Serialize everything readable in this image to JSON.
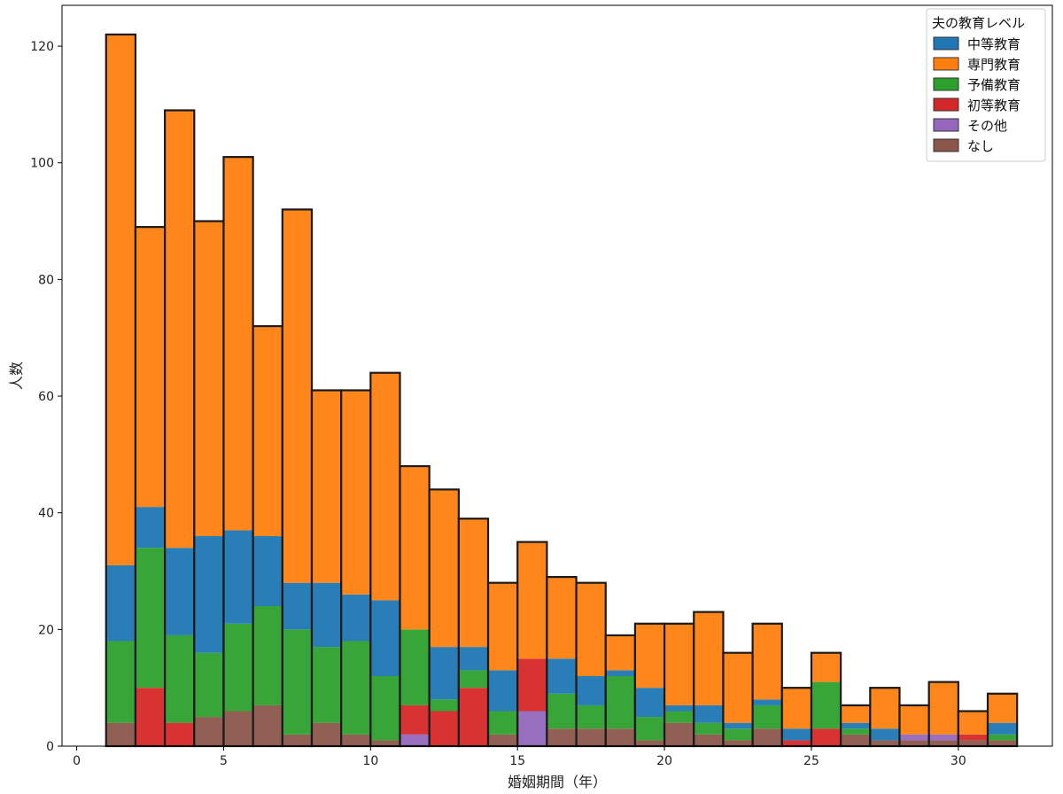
{
  "chart_data": {
    "type": "bar",
    "stacked": true,
    "histogram": true,
    "xlabel": "婚姻期間（年）",
    "ylabel": "人数",
    "xlim": [
      -0.5,
      33.2
    ],
    "ylim": [
      0,
      127
    ],
    "xticks": [
      0,
      5,
      10,
      15,
      20,
      25,
      30
    ],
    "yticks": [
      0,
      20,
      40,
      60,
      80,
      100,
      120
    ],
    "bin_width": 1,
    "bin_starts": [
      1,
      2,
      3,
      4,
      5,
      6,
      7,
      8,
      9,
      10,
      11,
      12,
      13,
      14,
      15,
      16,
      17,
      18,
      19,
      20,
      21,
      22,
      23,
      24,
      25,
      26,
      27,
      28,
      29,
      30,
      31
    ],
    "legend": {
      "title": "夫の教育レベル",
      "position": "top-right"
    },
    "series": [
      {
        "name": "なし",
        "color": "#8c564b",
        "values": [
          4,
          0,
          0,
          5,
          6,
          7,
          2,
          4,
          2,
          1,
          0,
          0,
          0,
          2,
          0,
          3,
          3,
          3,
          1,
          4,
          2,
          1,
          3,
          0,
          0,
          2,
          1,
          1,
          1,
          1,
          1
        ]
      },
      {
        "name": "その他",
        "color": "#9467bd",
        "values": [
          0,
          0,
          0,
          0,
          0,
          0,
          0,
          0,
          0,
          0,
          2,
          0,
          0,
          0,
          6,
          0,
          0,
          0,
          0,
          0,
          0,
          0,
          0,
          0,
          0,
          0,
          0,
          1,
          1,
          0,
          0
        ]
      },
      {
        "name": "初等教育",
        "color": "#d62728",
        "values": [
          0,
          10,
          4,
          0,
          0,
          0,
          0,
          0,
          0,
          0,
          5,
          6,
          10,
          0,
          9,
          0,
          0,
          0,
          0,
          0,
          0,
          0,
          0,
          1,
          3,
          0,
          0,
          0,
          0,
          1,
          0
        ]
      },
      {
        "name": "予備教育",
        "color": "#2ca02c",
        "values": [
          14,
          24,
          15,
          11,
          15,
          17,
          18,
          13,
          16,
          11,
          13,
          2,
          3,
          4,
          0,
          6,
          4,
          9,
          4,
          2,
          2,
          2,
          4,
          0,
          8,
          1,
          0,
          0,
          0,
          0,
          1
        ]
      },
      {
        "name": "中等教育",
        "color": "#1f77b4",
        "values": [
          13,
          7,
          15,
          20,
          16,
          12,
          8,
          11,
          8,
          13,
          0,
          9,
          4,
          7,
          0,
          6,
          5,
          1,
          5,
          1,
          3,
          1,
          1,
          2,
          0,
          1,
          2,
          0,
          0,
          0,
          2
        ]
      },
      {
        "name": "専門教育",
        "color": "#ff7f0e",
        "values": [
          91,
          48,
          75,
          54,
          64,
          36,
          64,
          33,
          35,
          39,
          28,
          27,
          22,
          15,
          20,
          14,
          16,
          6,
          11,
          14,
          16,
          12,
          13,
          7,
          5,
          3,
          7,
          5,
          9,
          4,
          5
        ]
      }
    ],
    "legend_order": [
      "中等教育",
      "専門教育",
      "予備教育",
      "初等教育",
      "その他",
      "なし"
    ]
  }
}
